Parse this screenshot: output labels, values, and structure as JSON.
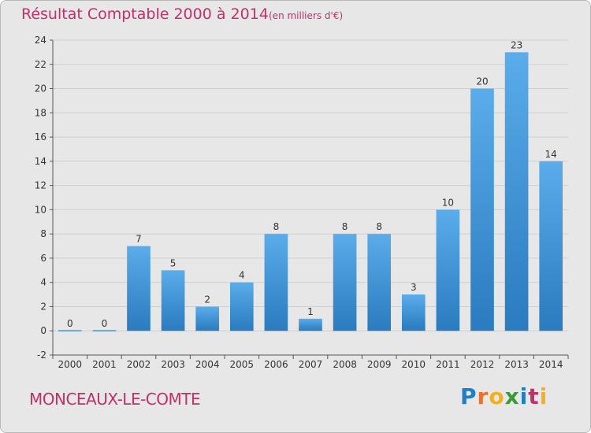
{
  "header": {
    "title": "Résultat Comptable 2000 à 2014",
    "subtitle": "(en milliers d'€)"
  },
  "footer": {
    "commune": "MONCEAUX-LE-COMTE",
    "logo_letters": [
      "P",
      "r",
      "o",
      "x",
      "i",
      "t",
      "i"
    ],
    "logo_colors": [
      "#1f7fc4",
      "#e8712d",
      "#f2b01e",
      "#3a9a3a",
      "#1f7fc4",
      "#c0306a",
      "#f2b01e"
    ]
  },
  "chart_data": {
    "type": "bar",
    "title": "Résultat Comptable 2000 à 2014",
    "subtitle": "(en milliers d'€)",
    "categories": [
      "2000",
      "2001",
      "2002",
      "2003",
      "2004",
      "2005",
      "2006",
      "2007",
      "2008",
      "2009",
      "2010",
      "2011",
      "2012",
      "2013",
      "2014"
    ],
    "values": [
      0,
      0,
      7,
      5,
      2,
      4,
      8,
      1,
      8,
      8,
      3,
      10,
      20,
      23,
      14
    ],
    "ylim": [
      -2,
      24
    ],
    "yticks": [
      -2,
      0,
      2,
      4,
      6,
      8,
      10,
      12,
      14,
      16,
      18,
      20,
      22,
      24
    ],
    "grid": true,
    "xlabel": "",
    "ylabel": "",
    "bar_color_top": "#5aacea",
    "bar_color_bottom": "#2a7bbf",
    "background_color": "#e7e7e7",
    "grid_color": "#cfcfcf"
  }
}
